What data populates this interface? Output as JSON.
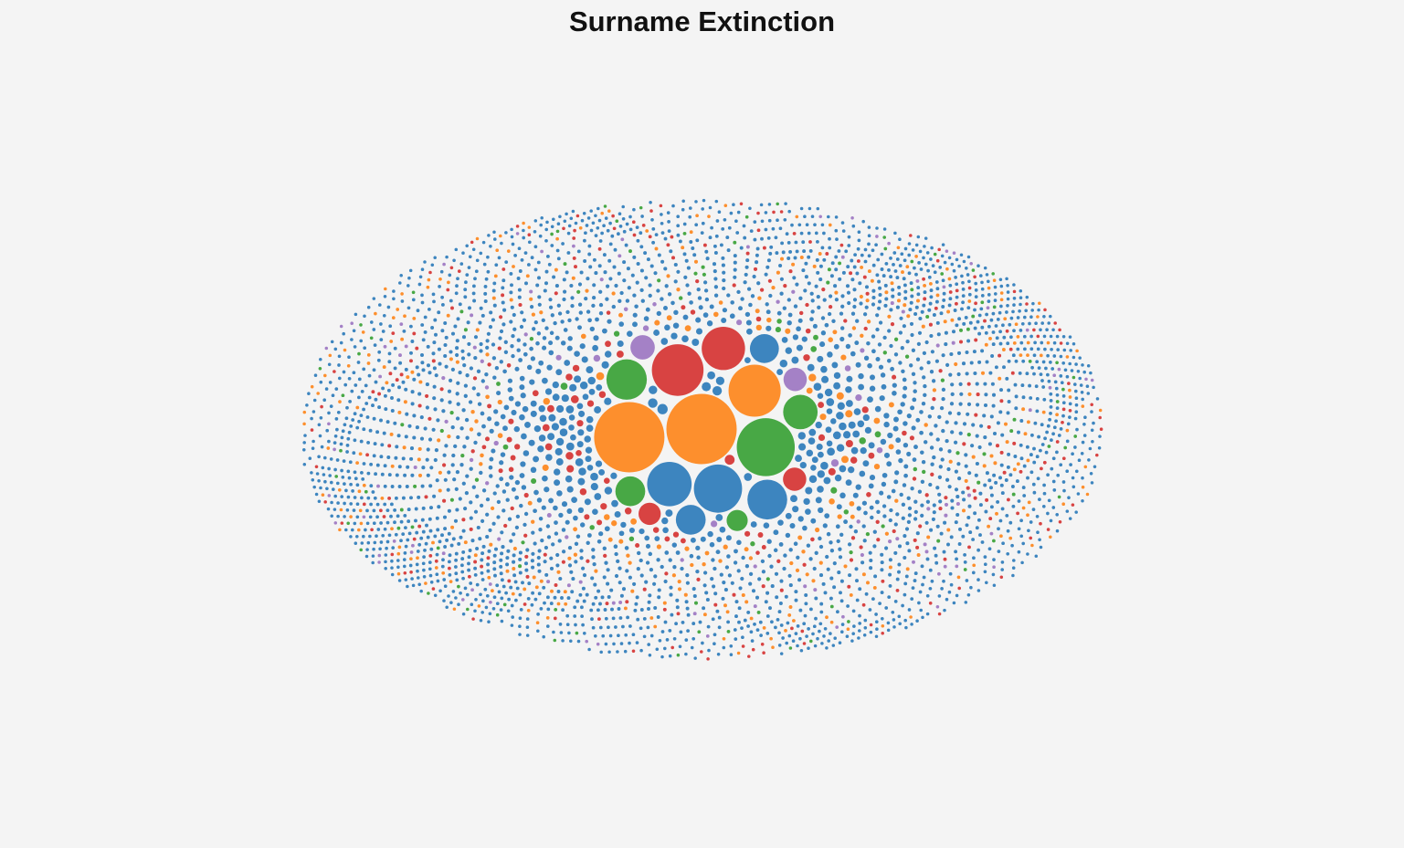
{
  "chart_data": {
    "type": "packed-bubble",
    "title": "Surname Extinction",
    "legend": "none",
    "grid": false,
    "colors": {
      "blue": "#3d85bf",
      "orange": "#fd8f2d",
      "green": "#48a845",
      "red": "#d84342",
      "purple": "#a481c6"
    },
    "large_bubbles": [
      {
        "color": "orange",
        "value": 100
      },
      {
        "color": "orange",
        "value": 100
      },
      {
        "color": "green",
        "value": 68
      },
      {
        "color": "orange",
        "value": 55
      },
      {
        "color": "blue",
        "value": 47
      },
      {
        "color": "red",
        "value": 54
      },
      {
        "color": "blue",
        "value": 40
      },
      {
        "color": "blue",
        "value": 32
      },
      {
        "color": "red",
        "value": 38
      },
      {
        "color": "green",
        "value": 33
      },
      {
        "color": "green",
        "value": 24
      },
      {
        "color": "green",
        "value": 18
      },
      {
        "color": "purple",
        "value": 12
      },
      {
        "color": "purple",
        "value": 11
      },
      {
        "color": "red",
        "value": 11
      },
      {
        "color": "blue",
        "value": 17
      },
      {
        "color": "red",
        "value": 10
      },
      {
        "color": "blue",
        "value": 18
      },
      {
        "color": "green",
        "value": 9
      }
    ],
    "small_bubbles": {
      "approx_count": 3600,
      "color_share": {
        "blue": 0.76,
        "orange": 0.09,
        "red": 0.08,
        "green": 0.035,
        "purple": 0.035
      }
    }
  }
}
